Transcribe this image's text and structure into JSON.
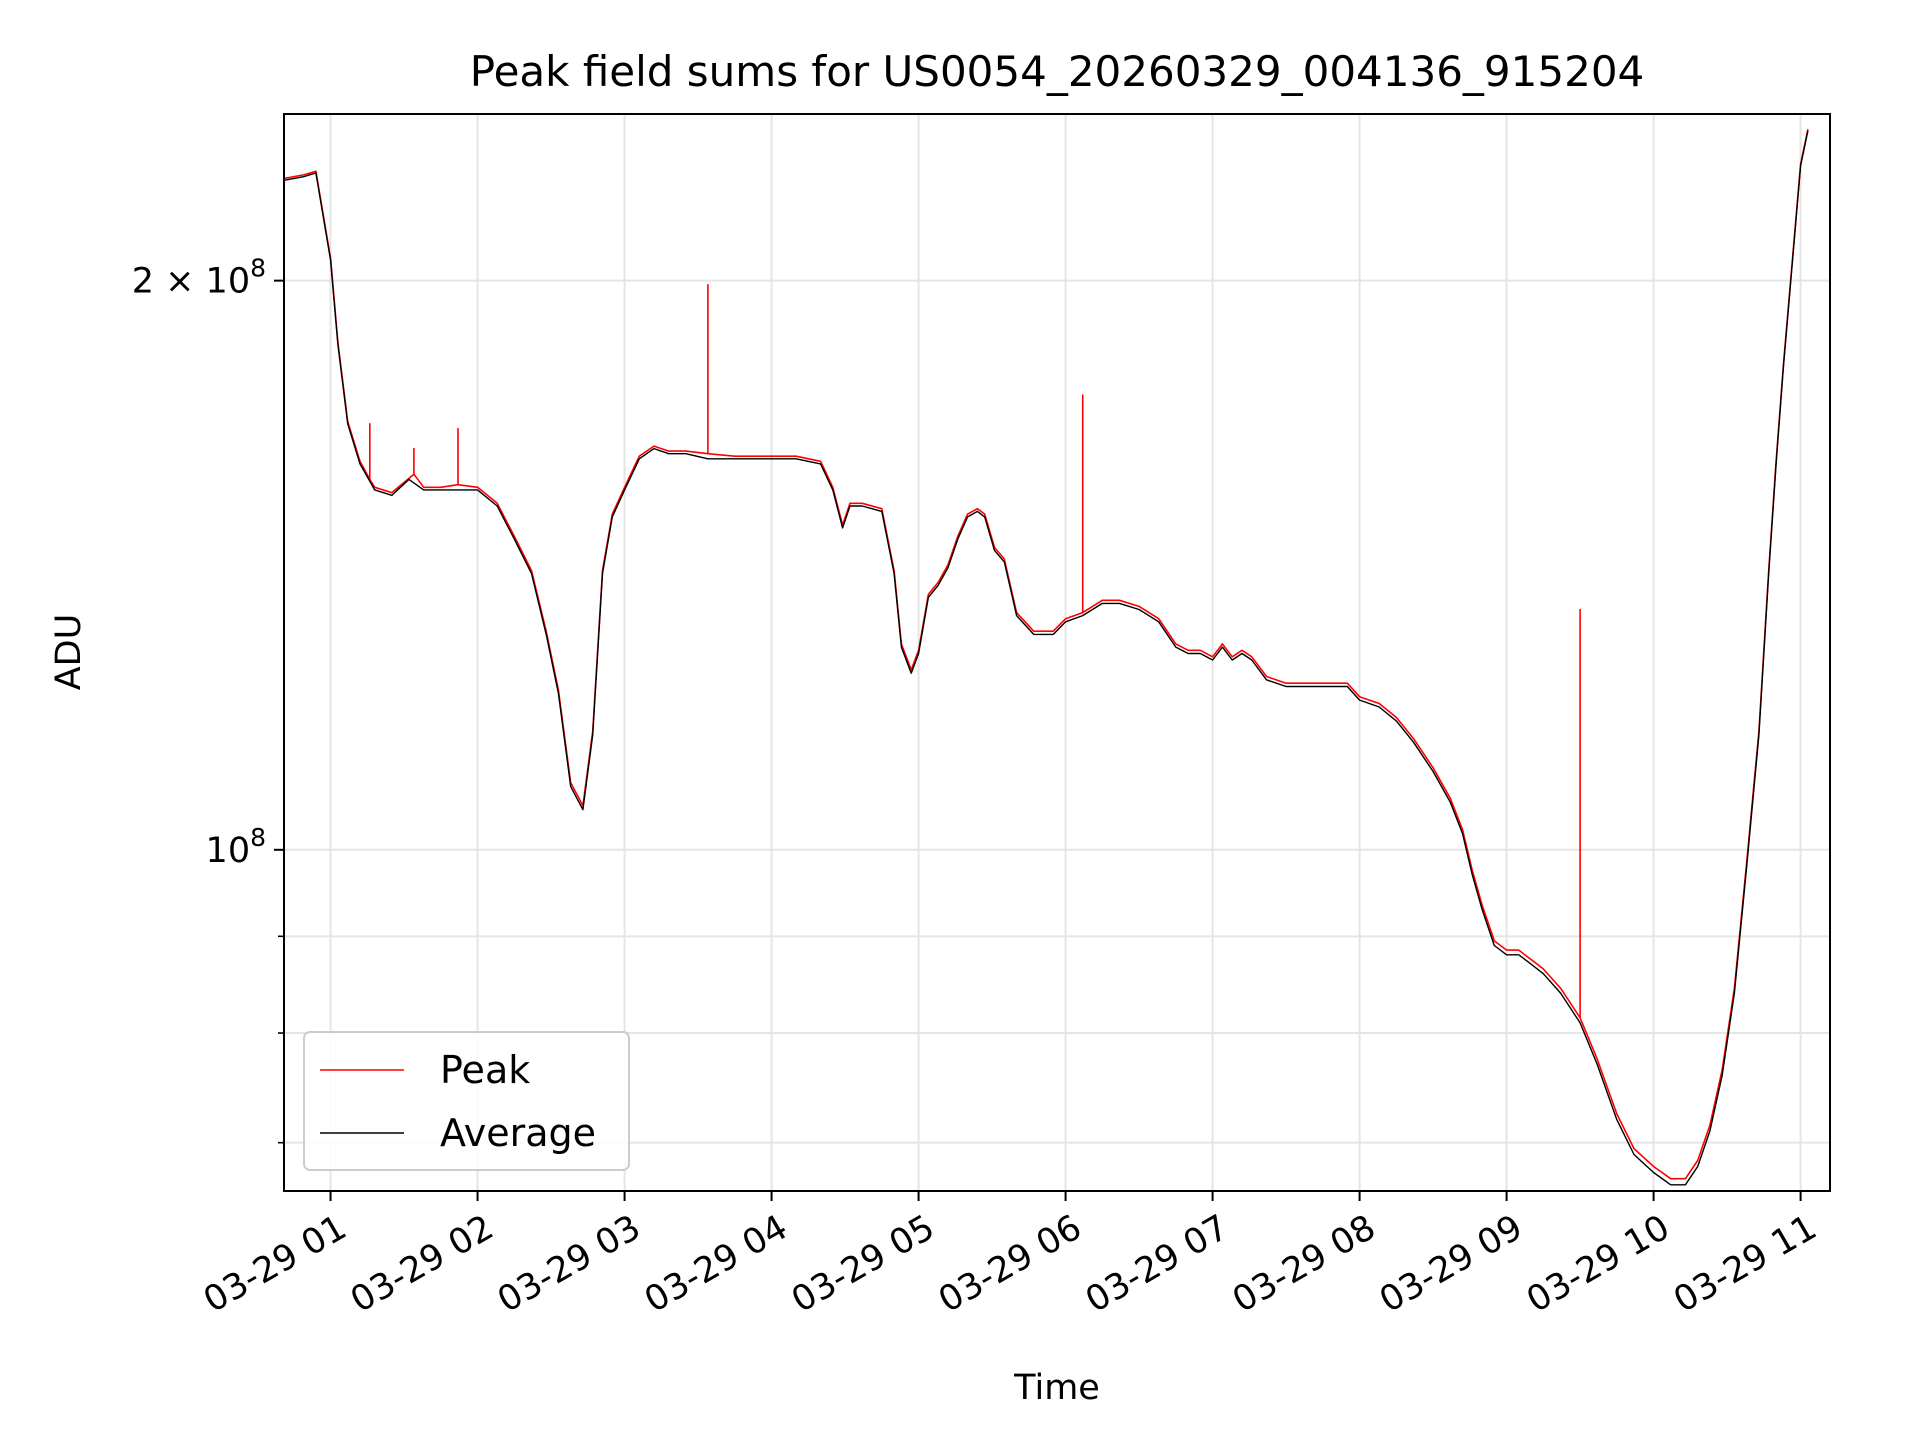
{
  "chart_data": {
    "type": "line",
    "title": "Peak field sums for US0054_20260329_004136_915204",
    "xlabel": "Time",
    "ylabel": "ADU",
    "y_scale": "log",
    "grid": true,
    "legend_position": "lower-left",
    "xlim": [
      "2026-03-29 00:41",
      "2026-03-29 11:12"
    ],
    "ylim": [
      66000000,
      245000000
    ],
    "x_ticks": [
      "03-29 01",
      "03-29 02",
      "03-29 03",
      "03-29 04",
      "03-29 05",
      "03-29 06",
      "03-29 07",
      "03-29 08",
      "03-29 09",
      "03-29 10",
      "03-29 11"
    ],
    "x_tick_times": [
      "2026-03-29 01:00",
      "2026-03-29 02:00",
      "2026-03-29 03:00",
      "2026-03-29 04:00",
      "2026-03-29 05:00",
      "2026-03-29 06:00",
      "2026-03-29 07:00",
      "2026-03-29 08:00",
      "2026-03-29 09:00",
      "2026-03-29 10:00",
      "2026-03-29 11:00"
    ],
    "y_major_ticks": [
      {
        "value": 200000000,
        "mantissa": "2",
        "times": "×",
        "base": "10",
        "exponent": "8"
      },
      {
        "value": 100000000,
        "mantissa": "",
        "times": "",
        "base": "10",
        "exponent": "8"
      }
    ],
    "y_minor_ticks": [
      70000000,
      80000000,
      90000000
    ],
    "series": [
      {
        "name": "Average",
        "color": "#000000",
        "x": [
          "2026-03-29 00:41",
          "2026-03-29 00:49",
          "2026-03-29 00:54",
          "2026-03-29 01:00",
          "2026-03-29 01:03",
          "2026-03-29 01:07",
          "2026-03-29 01:12",
          "2026-03-29 01:18",
          "2026-03-29 01:25",
          "2026-03-29 01:32",
          "2026-03-29 01:38",
          "2026-03-29 01:45",
          "2026-03-29 01:52",
          "2026-03-29 02:00",
          "2026-03-29 02:08",
          "2026-03-29 02:15",
          "2026-03-29 02:22",
          "2026-03-29 02:28",
          "2026-03-29 02:33",
          "2026-03-29 02:38",
          "2026-03-29 02:43",
          "2026-03-29 02:47",
          "2026-03-29 02:51",
          "2026-03-29 02:55",
          "2026-03-29 03:00",
          "2026-03-29 03:06",
          "2026-03-29 03:12",
          "2026-03-29 03:18",
          "2026-03-29 03:25",
          "2026-03-29 03:34",
          "2026-03-29 03:45",
          "2026-03-29 04:00",
          "2026-03-29 04:10",
          "2026-03-29 04:20",
          "2026-03-29 04:25",
          "2026-03-29 04:29",
          "2026-03-29 04:32",
          "2026-03-29 04:37",
          "2026-03-29 04:45",
          "2026-03-29 04:50",
          "2026-03-29 04:53",
          "2026-03-29 04:57",
          "2026-03-29 05:00",
          "2026-03-29 05:04",
          "2026-03-29 05:08",
          "2026-03-29 05:12",
          "2026-03-29 05:16",
          "2026-03-29 05:20",
          "2026-03-29 05:24",
          "2026-03-29 05:27",
          "2026-03-29 05:31",
          "2026-03-29 05:35",
          "2026-03-29 05:40",
          "2026-03-29 05:47",
          "2026-03-29 05:55",
          "2026-03-29 06:00",
          "2026-03-29 06:07",
          "2026-03-29 06:15",
          "2026-03-29 06:22",
          "2026-03-29 06:30",
          "2026-03-29 06:38",
          "2026-03-29 06:45",
          "2026-03-29 06:50",
          "2026-03-29 06:55",
          "2026-03-29 07:00",
          "2026-03-29 07:04",
          "2026-03-29 07:08",
          "2026-03-29 07:12",
          "2026-03-29 07:16",
          "2026-03-29 07:22",
          "2026-03-29 07:30",
          "2026-03-29 07:40",
          "2026-03-29 07:50",
          "2026-03-29 07:55",
          "2026-03-29 08:00",
          "2026-03-29 08:08",
          "2026-03-29 08:15",
          "2026-03-29 08:22",
          "2026-03-29 08:30",
          "2026-03-29 08:37",
          "2026-03-29 08:42",
          "2026-03-29 08:46",
          "2026-03-29 08:50",
          "2026-03-29 08:55",
          "2026-03-29 09:00",
          "2026-03-29 09:05",
          "2026-03-29 09:10",
          "2026-03-29 09:15",
          "2026-03-29 09:22",
          "2026-03-29 09:30",
          "2026-03-29 09:37",
          "2026-03-29 09:45",
          "2026-03-29 09:52",
          "2026-03-29 10:00",
          "2026-03-29 10:07",
          "2026-03-29 10:13",
          "2026-03-29 10:18",
          "2026-03-29 10:23",
          "2026-03-29 10:28",
          "2026-03-29 10:33",
          "2026-03-29 10:38",
          "2026-03-29 10:43",
          "2026-03-29 10:47",
          "2026-03-29 10:50",
          "2026-03-29 10:53",
          "2026-03-29 10:56",
          "2026-03-29 11:00",
          "2026-03-29 11:03"
        ],
        "values": [
          226000000,
          227000000,
          228000000,
          205000000,
          185000000,
          168000000,
          160000000,
          155000000,
          154000000,
          157000000,
          155000000,
          155000000,
          155000000,
          155000000,
          152000000,
          146000000,
          140000000,
          130000000,
          121000000,
          108000000,
          105000000,
          115000000,
          140000000,
          150000000,
          155000000,
          161000000,
          163000000,
          162000000,
          162000000,
          161000000,
          161000000,
          161000000,
          161000000,
          160000000,
          155000000,
          148000000,
          152000000,
          152000000,
          151000000,
          140000000,
          128000000,
          124000000,
          127000000,
          136000000,
          138000000,
          141000000,
          146000000,
          150000000,
          151000000,
          150000000,
          144000000,
          142000000,
          133000000,
          130000000,
          130000000,
          132000000,
          133000000,
          135000000,
          135000000,
          134000000,
          132000000,
          128000000,
          127000000,
          127000000,
          126000000,
          128000000,
          126000000,
          127000000,
          126000000,
          123000000,
          122000000,
          122000000,
          122000000,
          122000000,
          120000000,
          119000000,
          117000000,
          114000000,
          110000000,
          106000000,
          102000000,
          97000000,
          93000000,
          89000000,
          88000000,
          88000000,
          87000000,
          86000000,
          84000000,
          81000000,
          77000000,
          72000000,
          69000000,
          67500000,
          66500000,
          66500000,
          68000000,
          71000000,
          76000000,
          84000000,
          98000000,
          115000000,
          140000000,
          160000000,
          180000000,
          200000000,
          230000000,
          240000000
        ]
      },
      {
        "name": "Peak",
        "color": "#ff0000",
        "x": [
          "2026-03-29 00:41",
          "2026-03-29 00:49",
          "2026-03-29 00:54",
          "2026-03-29 01:00",
          "2026-03-29 01:03",
          "2026-03-29 01:07",
          "2026-03-29 01:12",
          "2026-03-29 01:16",
          "2026-03-29 01:16",
          "2026-03-29 01:16",
          "2026-03-29 01:18",
          "2026-03-29 01:25",
          "2026-03-29 01:34",
          "2026-03-29 01:34",
          "2026-03-29 01:34",
          "2026-03-29 01:38",
          "2026-03-29 01:45",
          "2026-03-29 01:52",
          "2026-03-29 01:52",
          "2026-03-29 01:52",
          "2026-03-29 02:00",
          "2026-03-29 02:08",
          "2026-03-29 02:15",
          "2026-03-29 02:22",
          "2026-03-29 02:28",
          "2026-03-29 02:33",
          "2026-03-29 02:38",
          "2026-03-29 02:43",
          "2026-03-29 02:47",
          "2026-03-29 02:51",
          "2026-03-29 02:55",
          "2026-03-29 03:00",
          "2026-03-29 03:06",
          "2026-03-29 03:12",
          "2026-03-29 03:18",
          "2026-03-29 03:25",
          "2026-03-29 03:34",
          "2026-03-29 03:34",
          "2026-03-29 03:34",
          "2026-03-29 03:45",
          "2026-03-29 04:00",
          "2026-03-29 04:10",
          "2026-03-29 04:20",
          "2026-03-29 04:25",
          "2026-03-29 04:29",
          "2026-03-29 04:32",
          "2026-03-29 04:37",
          "2026-03-29 04:45",
          "2026-03-29 04:50",
          "2026-03-29 04:53",
          "2026-03-29 04:57",
          "2026-03-29 05:00",
          "2026-03-29 05:04",
          "2026-03-29 05:08",
          "2026-03-29 05:12",
          "2026-03-29 05:16",
          "2026-03-29 05:20",
          "2026-03-29 05:24",
          "2026-03-29 05:27",
          "2026-03-29 05:31",
          "2026-03-29 05:35",
          "2026-03-29 05:40",
          "2026-03-29 05:47",
          "2026-03-29 05:55",
          "2026-03-29 06:00",
          "2026-03-29 06:07",
          "2026-03-29 06:07",
          "2026-03-29 06:07",
          "2026-03-29 06:15",
          "2026-03-29 06:22",
          "2026-03-29 06:30",
          "2026-03-29 06:38",
          "2026-03-29 06:45",
          "2026-03-29 06:50",
          "2026-03-29 06:55",
          "2026-03-29 07:00",
          "2026-03-29 07:04",
          "2026-03-29 07:08",
          "2026-03-29 07:12",
          "2026-03-29 07:16",
          "2026-03-29 07:22",
          "2026-03-29 07:30",
          "2026-03-29 07:40",
          "2026-03-29 07:50",
          "2026-03-29 07:55",
          "2026-03-29 08:00",
          "2026-03-29 08:08",
          "2026-03-29 08:15",
          "2026-03-29 08:22",
          "2026-03-29 08:30",
          "2026-03-29 08:37",
          "2026-03-29 08:42",
          "2026-03-29 08:46",
          "2026-03-29 08:50",
          "2026-03-29 08:55",
          "2026-03-29 09:00",
          "2026-03-29 09:05",
          "2026-03-29 09:10",
          "2026-03-29 09:15",
          "2026-03-29 09:22",
          "2026-03-29 09:30",
          "2026-03-29 09:30",
          "2026-03-29 09:30",
          "2026-03-29 09:37",
          "2026-03-29 09:45",
          "2026-03-29 09:52",
          "2026-03-29 10:00",
          "2026-03-29 10:07",
          "2026-03-29 10:13",
          "2026-03-29 10:18",
          "2026-03-29 10:23",
          "2026-03-29 10:28",
          "2026-03-29 10:33",
          "2026-03-29 10:38",
          "2026-03-29 10:43",
          "2026-03-29 10:47",
          "2026-03-29 10:50",
          "2026-03-29 10:53",
          "2026-03-29 10:56",
          "2026-03-29 11:00",
          "2026-03-29 11:03"
        ],
        "values": [
          226500000,
          227500000,
          228500000,
          205500000,
          185500000,
          168500000,
          160500000,
          157000000,
          168000000,
          157000000,
          155500000,
          154500000,
          158000000,
          163000000,
          158000000,
          155500000,
          155500000,
          156000000,
          167000000,
          156000000,
          155500000,
          152500000,
          146500000,
          140500000,
          130500000,
          121500000,
          108500000,
          105500000,
          115500000,
          140500000,
          150500000,
          155500000,
          161500000,
          163500000,
          162500000,
          162500000,
          162000000,
          199000000,
          162000000,
          161500000,
          161500000,
          161500000,
          160500000,
          155500000,
          148500000,
          152500000,
          152500000,
          151500000,
          140500000,
          128500000,
          124500000,
          127500000,
          136500000,
          138500000,
          141500000,
          146500000,
          150500000,
          151500000,
          150500000,
          144500000,
          142500000,
          133500000,
          130500000,
          130500000,
          132500000,
          133500000,
          174000000,
          133500000,
          135500000,
          135500000,
          134500000,
          132500000,
          128500000,
          127500000,
          127500000,
          126500000,
          128500000,
          126500000,
          127500000,
          126500000,
          123500000,
          122500000,
          122500000,
          122500000,
          122500000,
          120500000,
          119500000,
          117500000,
          114500000,
          110500000,
          106500000,
          102500000,
          97500000,
          93500000,
          89500000,
          88500000,
          88500000,
          87500000,
          86500000,
          84500000,
          81500000,
          134000000,
          81500000,
          77500000,
          72500000,
          69500000,
          68000000,
          67000000,
          67000000,
          68500000,
          71500000,
          76500000,
          84500000,
          98500000,
          115500000,
          140500000,
          160500000,
          180500000,
          200500000,
          230500000,
          240500000
        ]
      }
    ]
  }
}
